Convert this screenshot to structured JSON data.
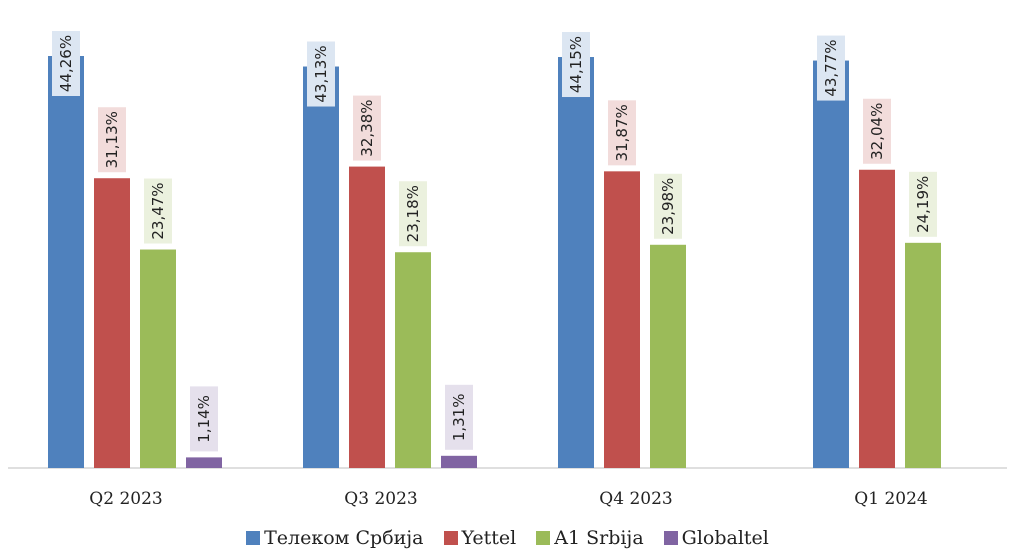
{
  "chart_data": {
    "type": "bar",
    "categories": [
      "Q2 2023",
      "Q3 2023",
      "Q4 2023",
      "Q1 2024"
    ],
    "series": [
      {
        "name": "Телеком Србија",
        "color": "#4F81BD",
        "label_bg": "#DCE6F2",
        "values": [
          44.26,
          43.13,
          44.15,
          43.77
        ],
        "labels": [
          "44,26%",
          "43,13%",
          "44,15%",
          "43,77%"
        ]
      },
      {
        "name": "Yettel",
        "color": "#C0504D",
        "label_bg": "#F2DCDB",
        "values": [
          31.13,
          32.38,
          31.87,
          32.04
        ],
        "labels": [
          "31,13%",
          "32,38%",
          "31,87%",
          "32,04%"
        ]
      },
      {
        "name": "A1 Srbija",
        "color": "#9BBB59",
        "label_bg": "#EBF1DE",
        "values": [
          23.47,
          23.18,
          23.98,
          24.19
        ],
        "labels": [
          "23,47%",
          "23,18%",
          "23,98%",
          "24,19%"
        ]
      },
      {
        "name": "Globaltel",
        "color": "#8064A2",
        "label_bg": "#E5E0EC",
        "values": [
          1.14,
          1.31,
          null,
          null
        ],
        "labels": [
          "1,14%",
          "1,31%",
          null,
          null
        ]
      }
    ],
    "ylim": [
      0,
      45
    ],
    "grid": false,
    "legend_position": "bottom"
  }
}
